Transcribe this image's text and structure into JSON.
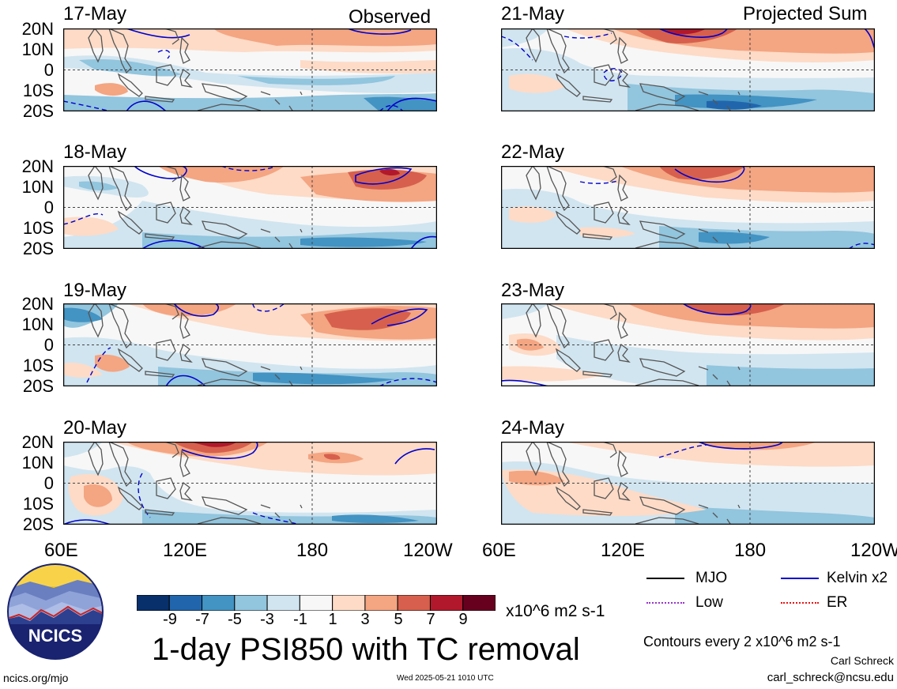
{
  "panels": {
    "observed_note": "Observed",
    "projected_note": "Projected Sum",
    "left": [
      {
        "date": "17-May"
      },
      {
        "date": "18-May"
      },
      {
        "date": "19-May"
      },
      {
        "date": "20-May"
      }
    ],
    "right": [
      {
        "date": "21-May"
      },
      {
        "date": "22-May"
      },
      {
        "date": "23-May"
      },
      {
        "date": "24-May"
      }
    ]
  },
  "y_ticks": [
    "20N",
    "10N",
    "0",
    "10S",
    "20S"
  ],
  "x_ticks": [
    "60E",
    "120E",
    "180",
    "120W"
  ],
  "colorbar": {
    "colors": [
      "#08306b",
      "#2166ac",
      "#4393c3",
      "#92c5de",
      "#d1e5f0",
      "#f7f7f7",
      "#fddbc7",
      "#f4a582",
      "#d6604d",
      "#b2182b",
      "#67001f"
    ],
    "labels": [
      "-9",
      "-7",
      "-5",
      "-3",
      "-1",
      "1",
      "3",
      "5",
      "7",
      "9"
    ],
    "units": "x10^6 m2 s-1"
  },
  "legend": {
    "mjo": {
      "label": "MJO",
      "color": "#000000"
    },
    "kelvin": {
      "label": "Kelvin x2",
      "color": "#0000cc"
    },
    "low": {
      "label": "Low",
      "color": "#9933cc"
    },
    "er": {
      "label": "ER",
      "color": "#ee1111"
    }
  },
  "title": "1-day PSI850 with TC removal",
  "contour_note": "Contours every 2 x10^6 m2 s-1",
  "author": "Carl Schreck",
  "email": "carl_schreck@ncsu.edu",
  "site": "ncics.org/mjo",
  "timestamp": "Wed 2025-05-21 1010 UTC",
  "logo_text": "NCICS"
}
